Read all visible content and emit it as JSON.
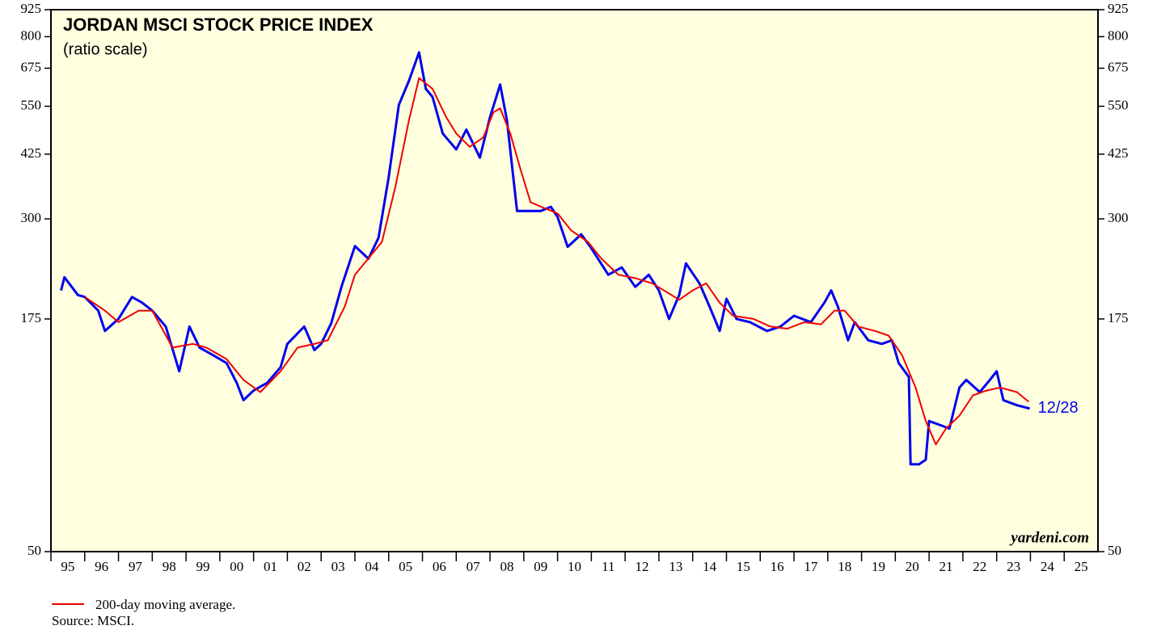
{
  "chart_data": {
    "type": "line",
    "title": "JORDAN MSCI STOCK PRICE INDEX",
    "subtitle": "(ratio scale)",
    "annotation": "12/28",
    "credit": "yardeni.com",
    "source": "Source: MSCI.",
    "log_scale": true,
    "ylim": [
      50,
      925
    ],
    "yticks": [
      50,
      175,
      300,
      425,
      550,
      675,
      800,
      925
    ],
    "xlim": [
      1995,
      2026
    ],
    "xticks": [
      {
        "value": 1995,
        "label": "95"
      },
      {
        "value": 1996,
        "label": "96"
      },
      {
        "value": 1997,
        "label": "97"
      },
      {
        "value": 1998,
        "label": "98"
      },
      {
        "value": 1999,
        "label": "99"
      },
      {
        "value": 2000,
        "label": "00"
      },
      {
        "value": 2001,
        "label": "01"
      },
      {
        "value": 2002,
        "label": "02"
      },
      {
        "value": 2003,
        "label": "03"
      },
      {
        "value": 2004,
        "label": "04"
      },
      {
        "value": 2005,
        "label": "05"
      },
      {
        "value": 2006,
        "label": "06"
      },
      {
        "value": 2007,
        "label": "07"
      },
      {
        "value": 2008,
        "label": "08"
      },
      {
        "value": 2009,
        "label": "09"
      },
      {
        "value": 2010,
        "label": "10"
      },
      {
        "value": 2011,
        "label": "11"
      },
      {
        "value": 2012,
        "label": "12"
      },
      {
        "value": 2013,
        "label": "13"
      },
      {
        "value": 2014,
        "label": "14"
      },
      {
        "value": 2015,
        "label": "15"
      },
      {
        "value": 2016,
        "label": "16"
      },
      {
        "value": 2017,
        "label": "17"
      },
      {
        "value": 2018,
        "label": "18"
      },
      {
        "value": 2019,
        "label": "19"
      },
      {
        "value": 2020,
        "label": "20"
      },
      {
        "value": 2021,
        "label": "21"
      },
      {
        "value": 2022,
        "label": "22"
      },
      {
        "value": 2023,
        "label": "23"
      },
      {
        "value": 2024,
        "label": "24"
      },
      {
        "value": 2025,
        "label": "25"
      }
    ],
    "series": [
      {
        "color": "#0000ee",
        "x": [
          1995.3,
          1995.4,
          1995.8,
          1996.0,
          1996.4,
          1996.6,
          1997.0,
          1997.4,
          1997.7,
          1998.0,
          1998.4,
          1998.8,
          1999.1,
          1999.4,
          1999.8,
          2000.2,
          2000.5,
          2000.7,
          2001.0,
          2001.4,
          2001.8,
          2002.0,
          2002.5,
          2002.8,
          2003.0,
          2003.3,
          2003.6,
          2004.0,
          2004.4,
          2004.7,
          2005.0,
          2005.3,
          2005.6,
          2005.9,
          2006.1,
          2006.3,
          2006.6,
          2007.0,
          2007.3,
          2007.7,
          2008.0,
          2008.3,
          2008.5,
          2008.8,
          2009.0,
          2009.5,
          2009.8,
          2010.0,
          2010.3,
          2010.7,
          2011.0,
          2011.5,
          2011.9,
          2012.3,
          2012.7,
          2013.0,
          2013.3,
          2013.6,
          2013.8,
          2014.2,
          2014.5,
          2014.8,
          2015.0,
          2015.3,
          2015.7,
          2016.2,
          2016.6,
          2017.0,
          2017.5,
          2017.9,
          2018.1,
          2018.3,
          2018.6,
          2018.8,
          2019.2,
          2019.6,
          2019.9,
          2020.1,
          2020.4,
          2020.45,
          2020.7,
          2020.9,
          2021.0,
          2021.3,
          2021.6,
          2021.9,
          2022.1,
          2022.5,
          2022.8,
          2023.0,
          2023.2,
          2023.6,
          2023.98
        ],
        "values": [
          204,
          219,
          199,
          197,
          183,
          164,
          175,
          197,
          191,
          183,
          168,
          132,
          168,
          150,
          144,
          138,
          124,
          113,
          119,
          124,
          135,
          153,
          168,
          148,
          153,
          171,
          208,
          259,
          242,
          271,
          375,
          554,
          631,
          735,
          604,
          578,
          475,
          436,
          485,
          417,
          519,
          618,
          510,
          313,
          313,
          313,
          320,
          303,
          258,
          276,
          256,
          222,
          231,
          208,
          222,
          204,
          175,
          199,
          236,
          212,
          187,
          164,
          195,
          175,
          172,
          164,
          168,
          178,
          172,
          191,
          204,
          187,
          156,
          172,
          156,
          153,
          156,
          138,
          128,
          80,
          80,
          82,
          101,
          99,
          97,
          121,
          126,
          118,
          126,
          132,
          113,
          110,
          108
        ]
      },
      {
        "name": "200-day moving average.",
        "color": "#ee0000",
        "x": [
          1996.0,
          1996.6,
          1997.0,
          1997.6,
          1998.0,
          1998.6,
          1999.2,
          1999.6,
          2000.2,
          2000.7,
          2001.2,
          2001.8,
          2002.3,
          2002.8,
          2003.2,
          2003.7,
          2004.0,
          2004.5,
          2004.8,
          2005.2,
          2005.6,
          2005.9,
          2006.3,
          2006.7,
          2007.0,
          2007.4,
          2007.8,
          2008.1,
          2008.3,
          2008.6,
          2008.9,
          2009.2,
          2009.6,
          2010.0,
          2010.4,
          2010.9,
          2011.3,
          2011.8,
          2012.3,
          2012.8,
          2013.2,
          2013.6,
          2014.0,
          2014.4,
          2014.8,
          2015.2,
          2015.8,
          2016.3,
          2016.8,
          2017.3,
          2017.8,
          2018.2,
          2018.5,
          2018.9,
          2019.4,
          2019.8,
          2020.2,
          2020.6,
          2020.9,
          2021.2,
          2021.5,
          2021.9,
          2022.3,
          2022.7,
          2023.1,
          2023.6,
          2023.95
        ],
        "values": [
          197,
          183,
          172,
          183,
          183,
          150,
          153,
          150,
          141,
          126,
          118,
          132,
          150,
          153,
          156,
          187,
          222,
          248,
          265,
          357,
          510,
          640,
          604,
          519,
          475,
          442,
          465,
          532,
          544,
          475,
          392,
          328,
          318,
          309,
          282,
          265,
          242,
          222,
          218,
          212,
          203,
          194,
          204,
          212,
          191,
          178,
          175,
          168,
          166,
          172,
          170,
          183,
          183,
          168,
          164,
          160,
          144,
          121,
          101,
          89,
          97,
          104,
          116,
          119,
          121,
          118,
          112
        ]
      }
    ]
  }
}
